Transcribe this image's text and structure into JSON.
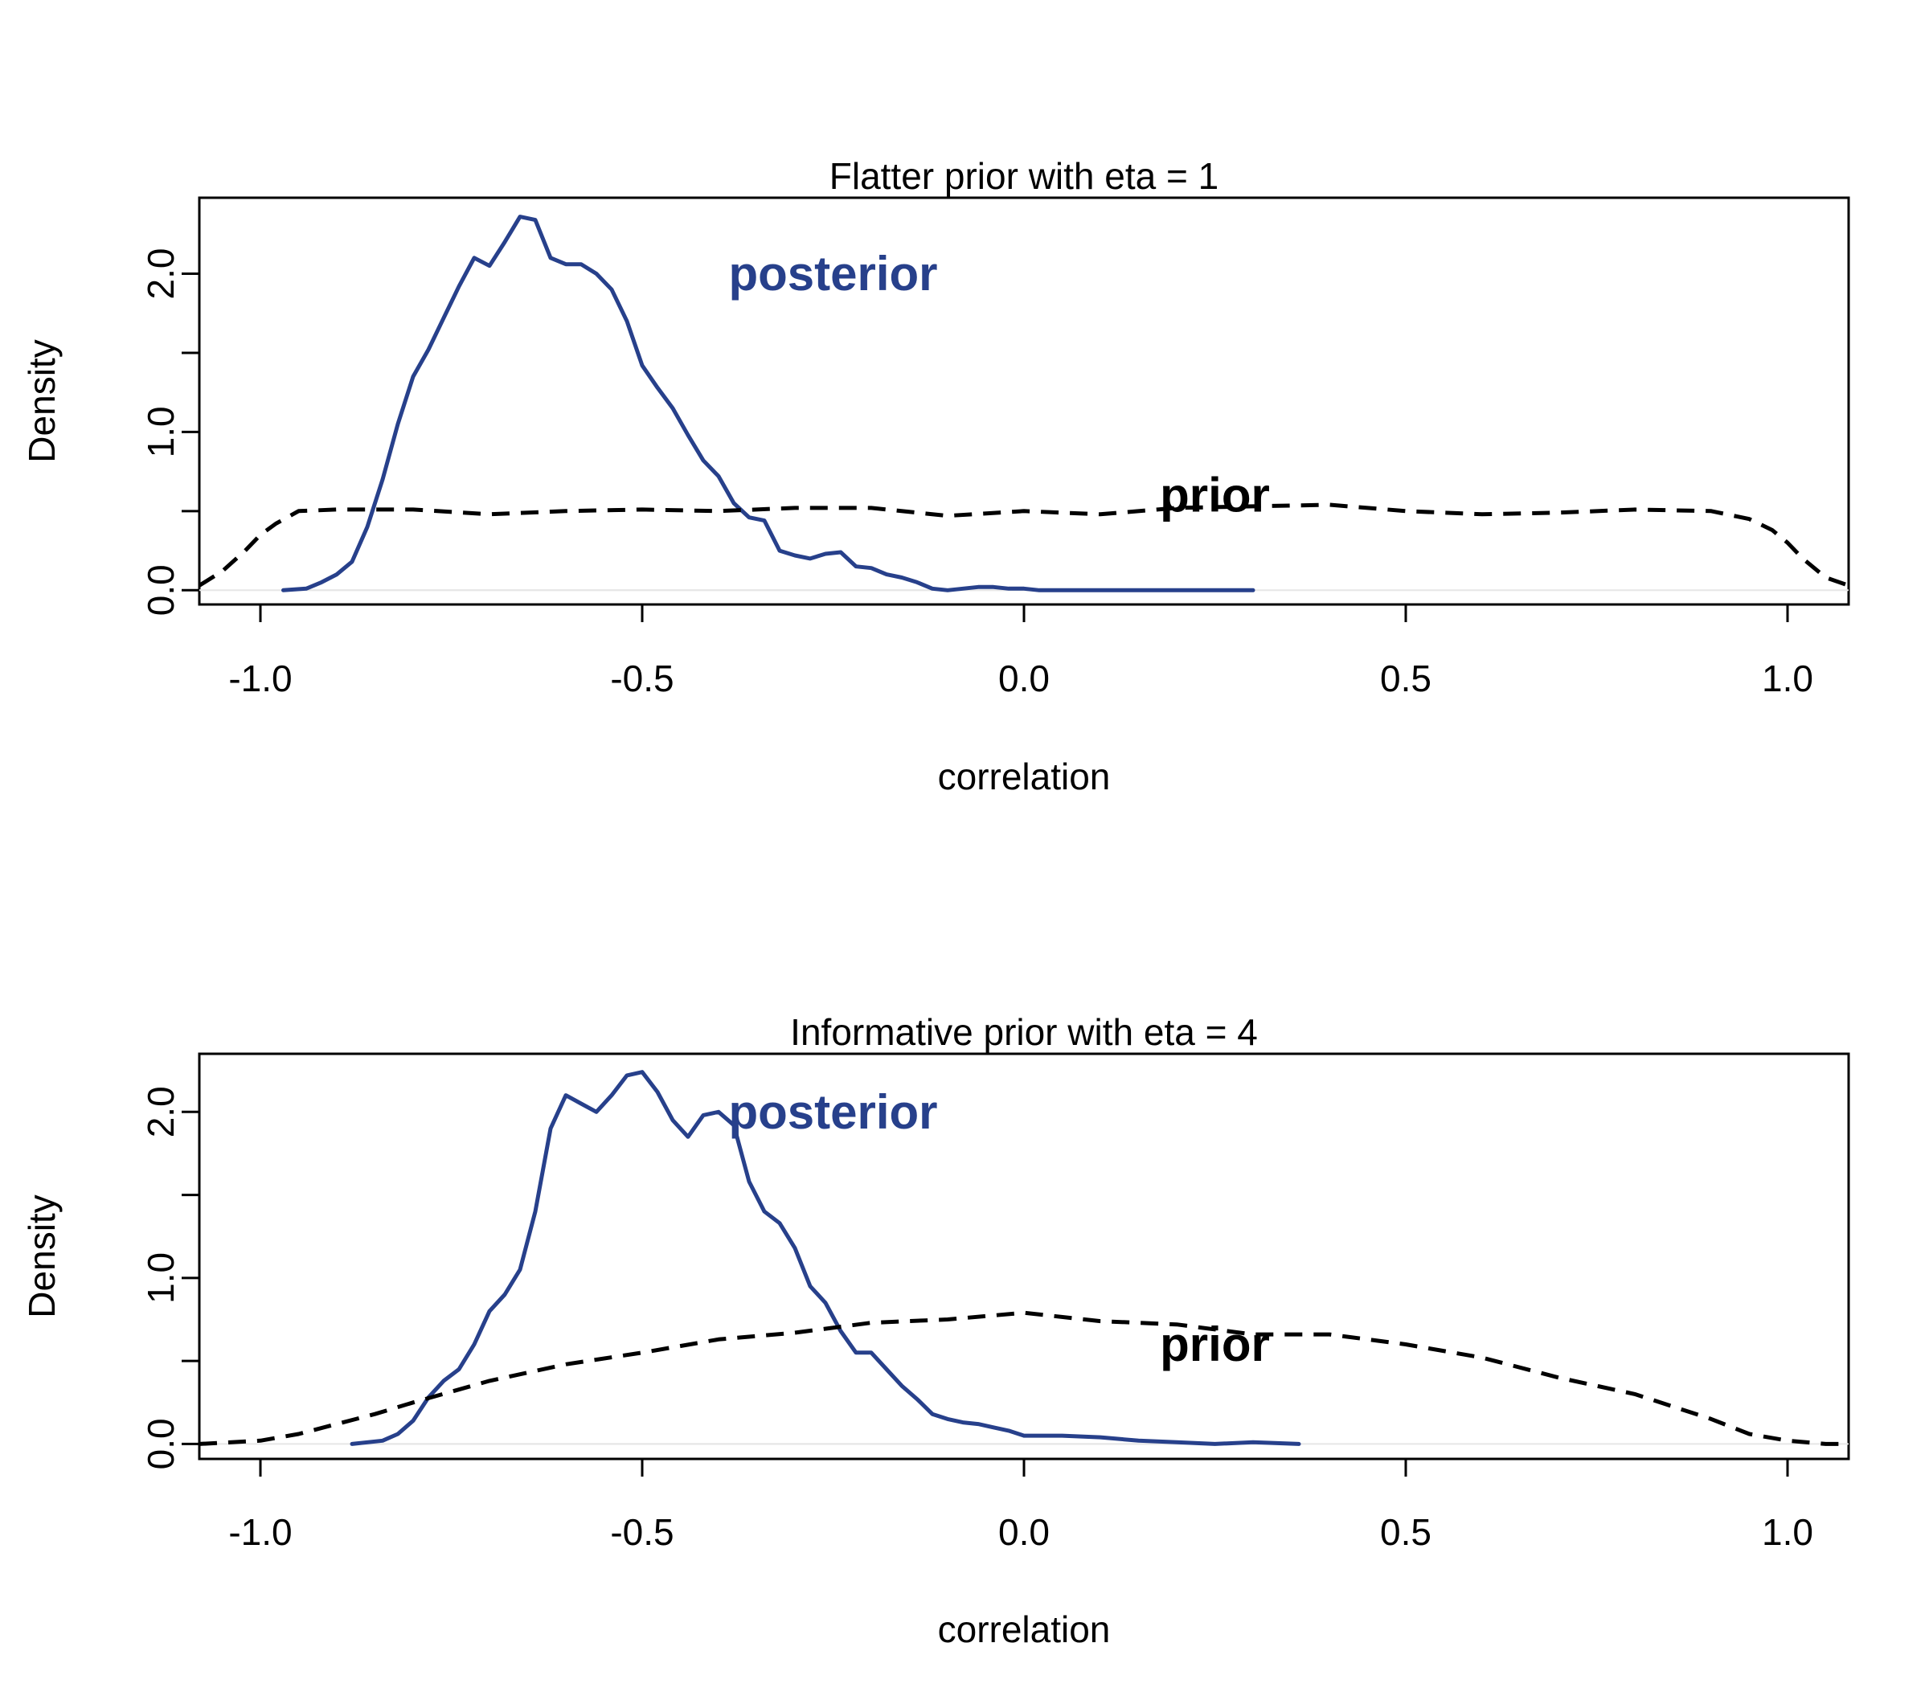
{
  "chart_data": [
    {
      "type": "line",
      "title": "Flatter prior with eta = 1",
      "xlabel": "correlation",
      "ylabel": "Density",
      "xlim": [
        -1.08,
        1.08
      ],
      "ylim": [
        -0.09,
        2.48
      ],
      "x_ticks": [
        -1.0,
        -0.5,
        0.0,
        0.5,
        1.0
      ],
      "x_tick_labels": [
        "-1.0",
        "-0.5",
        "0.0",
        "0.5",
        "1.0"
      ],
      "y_ticks": [
        0.0,
        0.5,
        1.0,
        1.5,
        2.0
      ],
      "y_tick_labels": [
        "0.0",
        "",
        "1.0",
        "",
        "2.0"
      ],
      "grid": false,
      "series": [
        {
          "name": "posterior",
          "color": "#27408b",
          "style": "solid",
          "x": [
            -0.97,
            -0.94,
            -0.92,
            -0.9,
            -0.88,
            -0.86,
            -0.84,
            -0.82,
            -0.8,
            -0.78,
            -0.76,
            -0.74,
            -0.72,
            -0.7,
            -0.68,
            -0.66,
            -0.64,
            -0.62,
            -0.6,
            -0.58,
            -0.56,
            -0.54,
            -0.52,
            -0.5,
            -0.48,
            -0.46,
            -0.44,
            -0.42,
            -0.4,
            -0.38,
            -0.36,
            -0.34,
            -0.32,
            -0.3,
            -0.28,
            -0.26,
            -0.24,
            -0.22,
            -0.2,
            -0.18,
            -0.16,
            -0.14,
            -0.12,
            -0.1,
            -0.08,
            -0.06,
            -0.04,
            -0.02,
            0.0,
            0.02,
            0.04,
            0.06,
            0.1,
            0.15,
            0.2,
            0.25,
            0.3
          ],
          "y": [
            0.0,
            0.01,
            0.05,
            0.1,
            0.18,
            0.4,
            0.7,
            1.05,
            1.35,
            1.52,
            1.72,
            1.92,
            2.1,
            2.05,
            2.2,
            2.36,
            2.34,
            2.1,
            2.06,
            2.06,
            2.0,
            1.9,
            1.7,
            1.42,
            1.28,
            1.15,
            0.98,
            0.82,
            0.72,
            0.55,
            0.46,
            0.44,
            0.25,
            0.22,
            0.2,
            0.23,
            0.24,
            0.15,
            0.14,
            0.1,
            0.08,
            0.05,
            0.01,
            0.0,
            0.01,
            0.02,
            0.02,
            0.01,
            0.01,
            0.0,
            0.0,
            0.0,
            0.0,
            0.0,
            0.0,
            0.0,
            0.0
          ]
        },
        {
          "name": "prior",
          "color": "#000000",
          "style": "dashed",
          "x": [
            -1.08,
            -1.05,
            -1.02,
            -1.0,
            -0.98,
            -0.95,
            -0.9,
            -0.8,
            -0.7,
            -0.6,
            -0.5,
            -0.4,
            -0.3,
            -0.2,
            -0.1,
            0.0,
            0.1,
            0.2,
            0.3,
            0.4,
            0.5,
            0.6,
            0.7,
            0.8,
            0.9,
            0.95,
            0.98,
            1.0,
            1.02,
            1.05,
            1.08
          ],
          "y": [
            0.03,
            0.12,
            0.25,
            0.35,
            0.42,
            0.5,
            0.51,
            0.51,
            0.48,
            0.5,
            0.51,
            0.5,
            0.52,
            0.52,
            0.47,
            0.5,
            0.48,
            0.52,
            0.53,
            0.54,
            0.5,
            0.48,
            0.49,
            0.51,
            0.5,
            0.45,
            0.38,
            0.3,
            0.2,
            0.08,
            0.03
          ]
        }
      ],
      "annotations": [
        {
          "text": "posterior",
          "x": -0.25,
          "y": 2.0,
          "color": "#27408b"
        },
        {
          "text": "prior",
          "x": 0.25,
          "y": 0.6,
          "color": "#000000"
        }
      ]
    },
    {
      "type": "line",
      "title": "Informative prior with eta = 4",
      "xlabel": "correlation",
      "ylabel": "Density",
      "xlim": [
        -1.08,
        1.08
      ],
      "ylim": [
        -0.09,
        2.35
      ],
      "x_ticks": [
        -1.0,
        -0.5,
        0.0,
        0.5,
        1.0
      ],
      "x_tick_labels": [
        "-1.0",
        "-0.5",
        "0.0",
        "0.5",
        "1.0"
      ],
      "y_ticks": [
        0.0,
        0.5,
        1.0,
        1.5,
        2.0
      ],
      "y_tick_labels": [
        "0.0",
        "",
        "1.0",
        "",
        "2.0"
      ],
      "grid": false,
      "series": [
        {
          "name": "posterior",
          "color": "#27408b",
          "style": "solid",
          "x": [
            -0.88,
            -0.84,
            -0.82,
            -0.8,
            -0.78,
            -0.76,
            -0.74,
            -0.72,
            -0.7,
            -0.68,
            -0.66,
            -0.64,
            -0.62,
            -0.6,
            -0.58,
            -0.56,
            -0.54,
            -0.52,
            -0.5,
            -0.48,
            -0.46,
            -0.44,
            -0.42,
            -0.4,
            -0.38,
            -0.36,
            -0.34,
            -0.32,
            -0.3,
            -0.28,
            -0.26,
            -0.24,
            -0.22,
            -0.2,
            -0.18,
            -0.16,
            -0.14,
            -0.12,
            -0.1,
            -0.08,
            -0.06,
            -0.04,
            -0.02,
            0.0,
            0.05,
            0.1,
            0.15,
            0.2,
            0.25,
            0.3,
            0.36
          ],
          "y": [
            0.0,
            0.02,
            0.06,
            0.14,
            0.28,
            0.38,
            0.45,
            0.6,
            0.8,
            0.9,
            1.05,
            1.4,
            1.9,
            2.1,
            2.05,
            2.0,
            2.1,
            2.22,
            2.24,
            2.12,
            1.95,
            1.85,
            1.98,
            2.0,
            1.92,
            1.58,
            1.4,
            1.33,
            1.18,
            0.95,
            0.85,
            0.68,
            0.55,
            0.55,
            0.45,
            0.35,
            0.27,
            0.18,
            0.15,
            0.13,
            0.12,
            0.1,
            0.08,
            0.05,
            0.05,
            0.04,
            0.02,
            0.01,
            0.0,
            0.01,
            0.0
          ]
        },
        {
          "name": "prior",
          "color": "#000000",
          "style": "dashed",
          "x": [
            -1.08,
            -1.0,
            -0.95,
            -0.9,
            -0.85,
            -0.8,
            -0.7,
            -0.6,
            -0.5,
            -0.4,
            -0.3,
            -0.2,
            -0.1,
            0.0,
            0.1,
            0.2,
            0.3,
            0.4,
            0.5,
            0.6,
            0.7,
            0.8,
            0.9,
            0.95,
            1.0,
            1.05,
            1.08
          ],
          "y": [
            0.0,
            0.02,
            0.06,
            0.12,
            0.18,
            0.25,
            0.38,
            0.48,
            0.55,
            0.63,
            0.67,
            0.73,
            0.75,
            0.79,
            0.74,
            0.72,
            0.66,
            0.66,
            0.6,
            0.52,
            0.4,
            0.3,
            0.15,
            0.06,
            0.02,
            0.0,
            0.0
          ]
        }
      ],
      "annotations": [
        {
          "text": "posterior",
          "x": -0.25,
          "y": 2.0,
          "color": "#27408b"
        },
        {
          "text": "prior",
          "x": 0.25,
          "y": 0.6,
          "color": "#000000"
        }
      ]
    }
  ]
}
